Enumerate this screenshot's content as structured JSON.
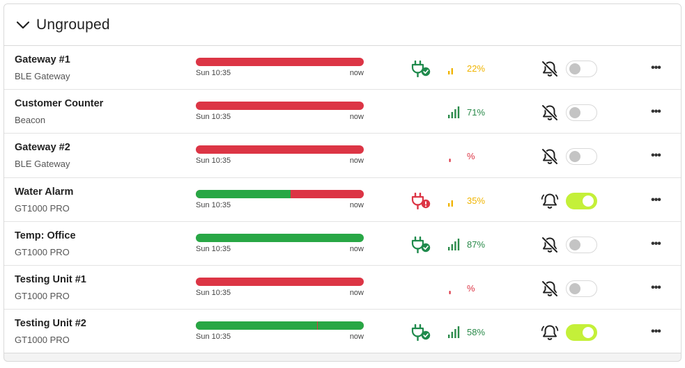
{
  "group": {
    "title": "Ungrouped",
    "icon": "chevron-down-icon",
    "expanded": true
  },
  "colors": {
    "green": "#28a745",
    "red": "#dc3545",
    "amber": "#f0b400",
    "signal_green": "#2a8a4a",
    "toggle_on": "#c4f039"
  },
  "devices": [
    {
      "name": "Gateway #1",
      "type": "BLE Gateway",
      "timeline": {
        "start": "Sun 10:35",
        "end": "now",
        "segments": [
          {
            "status": "offline",
            "fraction": 1.0
          }
        ]
      },
      "power": "plugged-ok",
      "signal_level": 2,
      "signal_pct": "22%",
      "signal_color": "amber",
      "alert": false,
      "menu": "•••"
    },
    {
      "name": "Customer Counter",
      "type": "Beacon",
      "timeline": {
        "start": "Sun 10:35",
        "end": "now",
        "segments": [
          {
            "status": "offline",
            "fraction": 1.0
          }
        ]
      },
      "power": "none",
      "signal_level": 4,
      "signal_pct": "71%",
      "signal_color": "green",
      "alert": false,
      "menu": "•••"
    },
    {
      "name": "Gateway #2",
      "type": "BLE Gateway",
      "timeline": {
        "start": "Sun 10:35",
        "end": "now",
        "segments": [
          {
            "status": "offline",
            "fraction": 1.0
          }
        ]
      },
      "power": "none",
      "signal_level": 0,
      "signal_pct": "%",
      "signal_color": "red",
      "alert": false,
      "menu": "•••"
    },
    {
      "name": "Water Alarm",
      "type": "GT1000 PRO",
      "timeline": {
        "start": "Sun 10:35",
        "end": "now",
        "segments": [
          {
            "status": "online",
            "fraction": 0.565
          },
          {
            "status": "offline",
            "fraction": 0.435
          }
        ]
      },
      "power": "plugged-error",
      "signal_level": 2,
      "signal_pct": "35%",
      "signal_color": "amber",
      "alert": true,
      "menu": "•••"
    },
    {
      "name": "Temp: Office",
      "type": "GT1000 PRO",
      "timeline": {
        "start": "Sun 10:35",
        "end": "now",
        "segments": [
          {
            "status": "online",
            "fraction": 1.0
          }
        ]
      },
      "power": "plugged-ok",
      "signal_level": 4,
      "signal_pct": "87%",
      "signal_color": "green",
      "alert": false,
      "menu": "•••"
    },
    {
      "name": "Testing Unit #1",
      "type": "GT1000 PRO",
      "timeline": {
        "start": "Sun 10:35",
        "end": "now",
        "segments": [
          {
            "status": "offline",
            "fraction": 1.0
          }
        ]
      },
      "power": "none",
      "signal_level": 0,
      "signal_pct": "%",
      "signal_color": "red",
      "alert": false,
      "menu": "•••"
    },
    {
      "name": "Testing Unit #2",
      "type": "GT1000 PRO",
      "timeline": {
        "start": "Sun 10:35",
        "end": "now",
        "segments": [
          {
            "status": "online",
            "fraction": 0.72
          },
          {
            "status": "offline",
            "fraction": 0.005
          },
          {
            "status": "online",
            "fraction": 0.275
          }
        ]
      },
      "power": "plugged-ok",
      "signal_level": 4,
      "signal_pct": "58%",
      "signal_color": "green",
      "alert": true,
      "menu": "•••"
    }
  ]
}
